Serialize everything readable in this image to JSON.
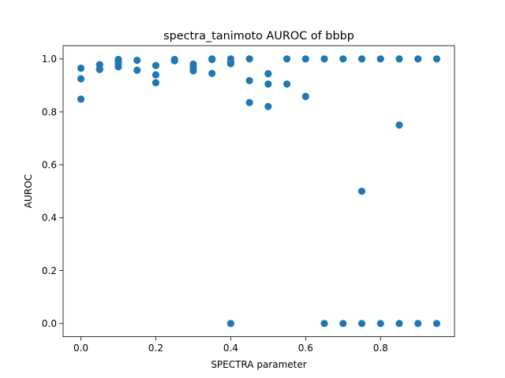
{
  "chart_data": {
    "type": "scatter",
    "title": "spectra_tanimoto AUROC of bbbp",
    "xlabel": "SPECTRA parameter",
    "ylabel": "AUROC",
    "xlim": [
      -0.0475,
      0.9975
    ],
    "ylim": [
      -0.05,
      1.05
    ],
    "xticks": [
      0.0,
      0.2,
      0.4,
      0.6,
      0.8
    ],
    "xtick_labels": [
      "0.0",
      "0.2",
      "0.4",
      "0.6",
      "0.8"
    ],
    "yticks": [
      0.0,
      0.2,
      0.4,
      0.6,
      0.8,
      1.0
    ],
    "ytick_labels": [
      "0.0",
      "0.2",
      "0.4",
      "0.6",
      "0.8",
      "1.0"
    ],
    "grid": false,
    "legend": "none",
    "marker_color": "#1f77b4",
    "points": [
      [
        0.0,
        0.965
      ],
      [
        0.0,
        0.925
      ],
      [
        0.0,
        0.848
      ],
      [
        0.05,
        0.978
      ],
      [
        0.05,
        0.962
      ],
      [
        0.05,
        0.96
      ],
      [
        0.1,
        0.998
      ],
      [
        0.1,
        0.99
      ],
      [
        0.1,
        0.98
      ],
      [
        0.1,
        0.97
      ],
      [
        0.15,
        0.995
      ],
      [
        0.15,
        0.957
      ],
      [
        0.2,
        0.975
      ],
      [
        0.2,
        0.94
      ],
      [
        0.2,
        0.91
      ],
      [
        0.25,
        0.998
      ],
      [
        0.25,
        0.993
      ],
      [
        0.3,
        0.98
      ],
      [
        0.3,
        0.968
      ],
      [
        0.3,
        0.955
      ],
      [
        0.35,
        1.0
      ],
      [
        0.35,
        0.998
      ],
      [
        0.35,
        0.945
      ],
      [
        0.4,
        1.0
      ],
      [
        0.4,
        0.987
      ],
      [
        0.4,
        0.982
      ],
      [
        0.4,
        0.0
      ],
      [
        0.45,
        1.0
      ],
      [
        0.45,
        0.918
      ],
      [
        0.45,
        0.835
      ],
      [
        0.5,
        0.944
      ],
      [
        0.5,
        0.905
      ],
      [
        0.5,
        0.82
      ],
      [
        0.55,
        1.0
      ],
      [
        0.55,
        0.905
      ],
      [
        0.6,
        1.0
      ],
      [
        0.6,
        0.858
      ],
      [
        0.65,
        1.0
      ],
      [
        0.65,
        0.0
      ],
      [
        0.7,
        1.0
      ],
      [
        0.7,
        0.0
      ],
      [
        0.75,
        1.0
      ],
      [
        0.75,
        0.5
      ],
      [
        0.75,
        0.0
      ],
      [
        0.8,
        1.0
      ],
      [
        0.8,
        0.0
      ],
      [
        0.85,
        1.0
      ],
      [
        0.85,
        0.75
      ],
      [
        0.85,
        0.0
      ],
      [
        0.9,
        1.0
      ],
      [
        0.9,
        0.0
      ],
      [
        0.95,
        1.0
      ],
      [
        0.95,
        0.0
      ]
    ]
  }
}
